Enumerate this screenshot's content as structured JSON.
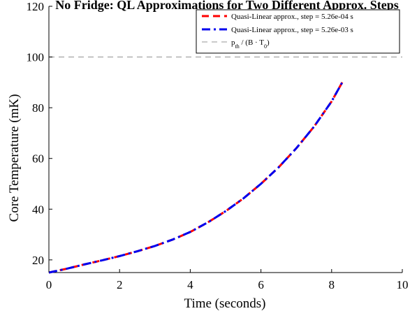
{
  "chart_data": {
    "type": "line",
    "title": "No Fridge: QL Approximations for Two Different Approx. Steps",
    "xlabel": "Time (seconds)",
    "ylabel": "Core Temperature (mK)",
    "xlim": [
      0,
      10
    ],
    "ylim": [
      15,
      120
    ],
    "xticks": [
      0,
      2,
      4,
      6,
      8,
      10
    ],
    "yticks": [
      20,
      40,
      60,
      80,
      100,
      120
    ],
    "grid": false,
    "legend_position": "top-right",
    "series": [
      {
        "name": "Quasi-Linear approx., step = 5.26e-04 s",
        "color": "#ff0000",
        "style": "dashed",
        "x": [
          0,
          0.5,
          1,
          1.5,
          2,
          2.5,
          3,
          3.5,
          4,
          4.5,
          5,
          5.5,
          6,
          6.5,
          7,
          7.5,
          8,
          8.3
        ],
        "y": [
          15,
          16.5,
          18.2,
          19.8,
          21.5,
          23.4,
          25.5,
          28.0,
          31.0,
          34.8,
          39.2,
          44.2,
          50.0,
          56.5,
          64.0,
          72.5,
          82.5,
          90.0
        ]
      },
      {
        "name": "Quasi-Linear approx., step = 5.26e-03 s",
        "color": "#0000ee",
        "style": "dashdot",
        "x": [
          0,
          0.5,
          1,
          1.5,
          2,
          2.5,
          3,
          3.5,
          4,
          4.5,
          5,
          5.5,
          6,
          6.5,
          7,
          7.5,
          8,
          8.3
        ],
        "y": [
          15,
          16.5,
          18.2,
          19.8,
          21.5,
          23.4,
          25.5,
          28.0,
          31.0,
          34.8,
          39.2,
          44.2,
          50.0,
          56.5,
          64.0,
          72.5,
          82.5,
          90.0
        ]
      }
    ],
    "reference_line": {
      "name_main": "p",
      "name_sub": "th",
      "name_mid": " / (B · T",
      "name_sub2": "0",
      "name_end": ")",
      "y": 100,
      "color": "#aaaaaa",
      "style": "dashed"
    }
  }
}
